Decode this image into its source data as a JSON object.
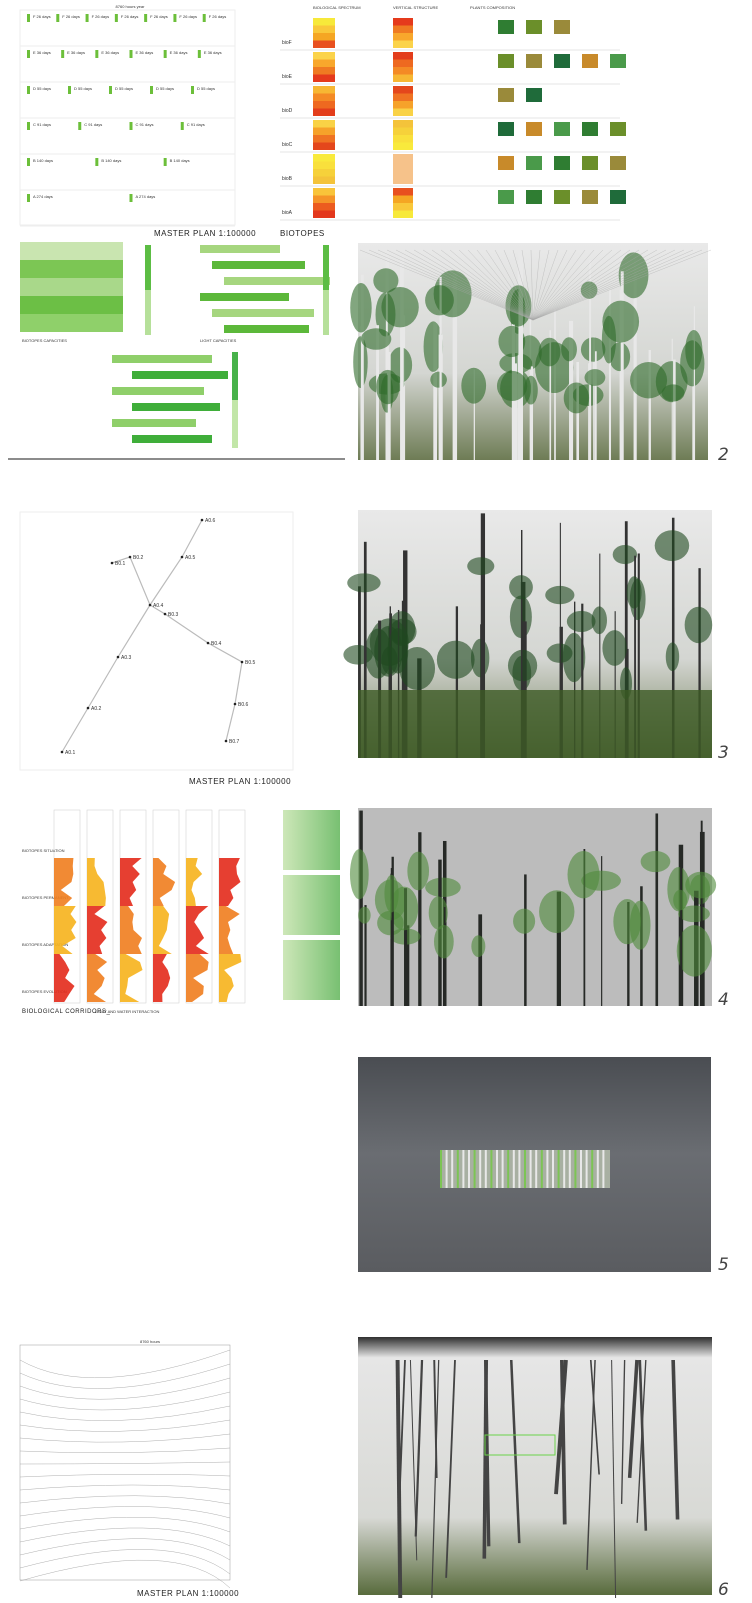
{
  "master_plan": {
    "title": "8760 hours year",
    "rows": [
      "F 26 days",
      "E 36 days",
      "D 55 days",
      "C 91 days",
      "B 140 days",
      "A 274 days"
    ],
    "caption": "MASTER PLAN 1:100000"
  },
  "biotopes": {
    "caption": "BIOTOPES",
    "headers": [
      "BIOLOGICAL SPECTRUM",
      "VERTICAL STRUCTURE",
      "PLANTS COMPOSITION"
    ],
    "rows": [
      "bioF",
      "bioE",
      "bioD",
      "bioC",
      "bioB",
      "bioA"
    ]
  },
  "capacities": {
    "left_caption": "BIOTOPES CAPACITIES",
    "right_caption": "LIGHT CAPACITIES"
  },
  "network": {
    "nodes": [
      "A0.1",
      "A0.2",
      "A0.3",
      "A0.4",
      "A0.5",
      "A0.6",
      "B0.1",
      "B0.2",
      "B0.3",
      "B0.4",
      "B0.5",
      "B0.6",
      "B0.7"
    ],
    "caption": "MASTER PLAN 1:100000"
  },
  "corridors": {
    "caption": "BIOLOGICAL CORRIDORS_",
    "subcaption": "LIGHT AND WATER INTERACTION",
    "labels": [
      "BIOTOPES SITUATION",
      "BIOTOPES PERMANENT",
      "BIOTOPES ADAPTATION",
      "BIOTOPES EVOLUTION"
    ]
  },
  "final_plan": {
    "header": "8760 hours",
    "caption": "MASTER PLAN 1:100000"
  },
  "view_numbers": [
    "2",
    "3",
    "4",
    "5",
    "6"
  ]
}
